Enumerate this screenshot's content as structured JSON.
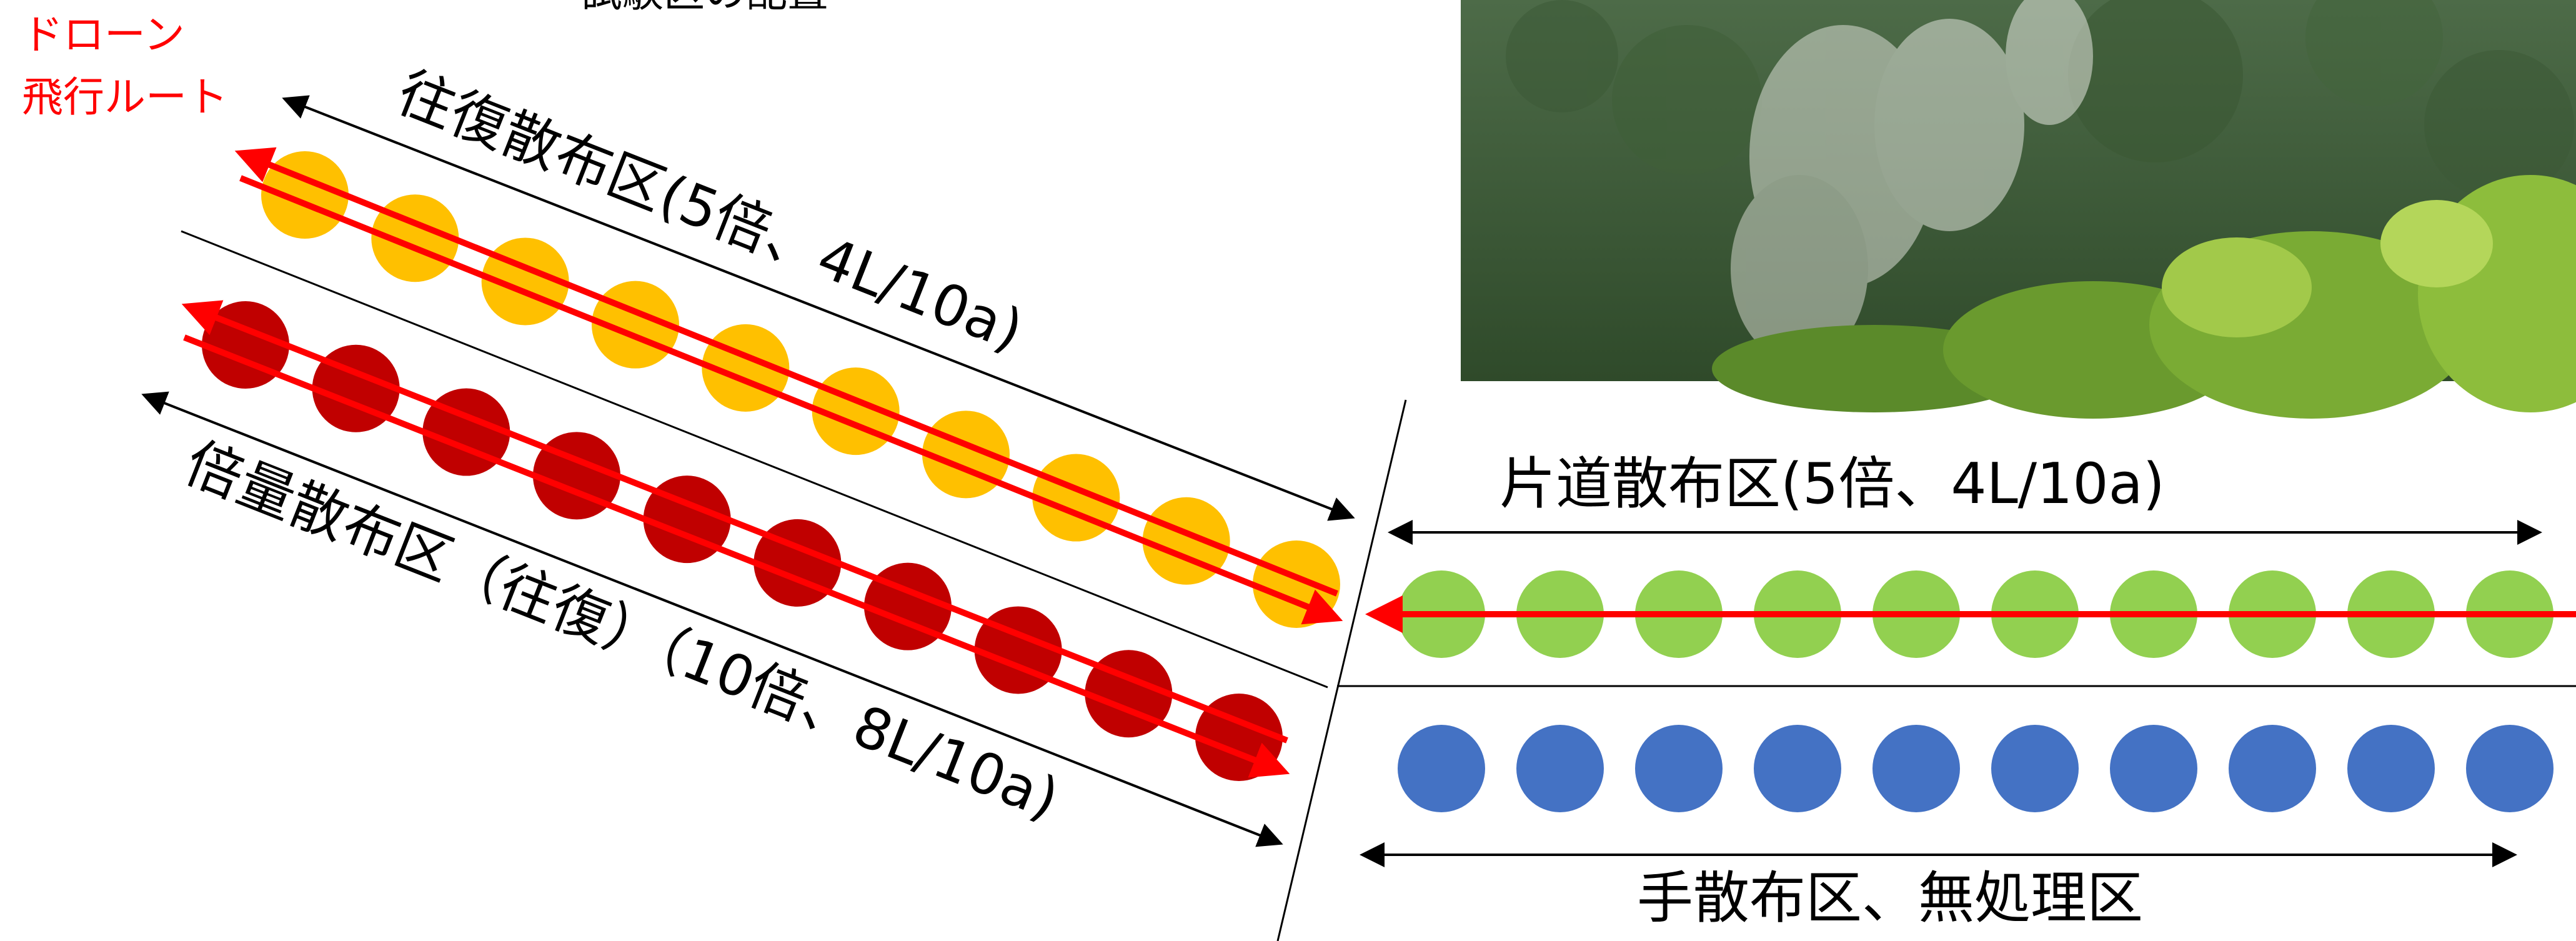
{
  "route_label": {
    "line1": "ドローン",
    "line2": "飛行ルート",
    "color": "#ff0000"
  },
  "top_caption_partial": "試験区の配置",
  "photo": {
    "description_icon": "drone-spray-photo-icon"
  },
  "sections": {
    "round_trip": {
      "label": "往復散布区(5倍、4L/10a)",
      "count": 10,
      "color": "#ffc000"
    },
    "double_dose": {
      "label": "倍量散布区（往復）（10倍、8L/10a)",
      "count": 10,
      "color": "#c00000"
    },
    "one_way": {
      "label": "片道散布区(5倍、4L/10a)",
      "count": 10,
      "color": "#92d050"
    },
    "hand": {
      "label": "手散布区、無処理区",
      "count": 10,
      "color": "#4472c4"
    }
  },
  "colors": {
    "route": "#ff0000",
    "arrow": "#000000",
    "divider": "#000000"
  }
}
